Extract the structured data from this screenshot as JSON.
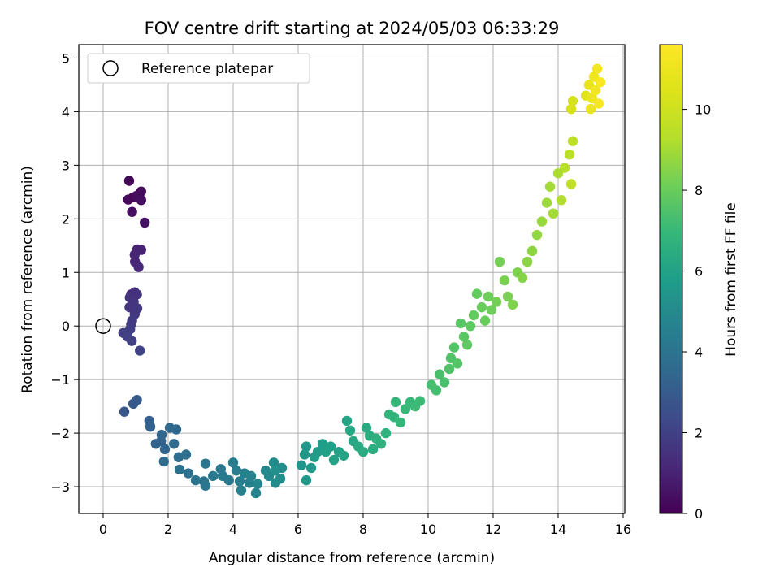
{
  "chart_data": {
    "type": "scatter",
    "title": "FOV centre drift starting at 2024/05/03 06:33:29",
    "xlabel": "Angular distance from reference (arcmin)",
    "ylabel": "Rotation from reference (arcmin)",
    "xlim": [
      -0.75,
      16.05
    ],
    "ylim": [
      -3.5,
      5.25
    ],
    "xticks": [
      "0",
      "2",
      "4",
      "6",
      "8",
      "10",
      "12",
      "14",
      "16"
    ],
    "yticks": [
      "−3",
      "−2",
      "−1",
      "0",
      "1",
      "2",
      "3",
      "4",
      "5"
    ],
    "grid": true,
    "legend": {
      "placement": "top-left",
      "entries": [
        "Reference platepar"
      ]
    },
    "reference_point": {
      "x": 0,
      "y": 0
    },
    "colorbar": {
      "label": "Hours from first FF file",
      "range": [
        0,
        11.6
      ],
      "ticks": [
        "0",
        "2",
        "4",
        "6",
        "8",
        "10"
      ],
      "colormap": "viridis"
    },
    "points": [
      {
        "x": 0.8,
        "y": 2.71,
        "h": 0.1
      },
      {
        "x": 0.77,
        "y": 2.36,
        "h": 0.2
      },
      {
        "x": 0.92,
        "y": 2.4,
        "h": 0.2
      },
      {
        "x": 1.03,
        "y": 2.43,
        "h": 0.3
      },
      {
        "x": 1.17,
        "y": 2.51,
        "h": 0.3
      },
      {
        "x": 1.17,
        "y": 2.35,
        "h": 0.4
      },
      {
        "x": 0.89,
        "y": 2.13,
        "h": 0.4
      },
      {
        "x": 1.28,
        "y": 1.93,
        "h": 0.5
      },
      {
        "x": 1.05,
        "y": 1.43,
        "h": 1.0
      },
      {
        "x": 1.17,
        "y": 1.42,
        "h": 1.0
      },
      {
        "x": 0.97,
        "y": 1.33,
        "h": 1.1
      },
      {
        "x": 0.98,
        "y": 1.2,
        "h": 1.1
      },
      {
        "x": 1.09,
        "y": 1.1,
        "h": 1.2
      },
      {
        "x": 0.86,
        "y": 0.59,
        "h": 1.4
      },
      {
        "x": 0.97,
        "y": 0.63,
        "h": 1.4
      },
      {
        "x": 1.04,
        "y": 0.59,
        "h": 1.5
      },
      {
        "x": 0.82,
        "y": 0.53,
        "h": 1.5
      },
      {
        "x": 0.94,
        "y": 0.45,
        "h": 1.6
      },
      {
        "x": 0.81,
        "y": 0.35,
        "h": 1.6
      },
      {
        "x": 1.05,
        "y": 0.33,
        "h": 1.7
      },
      {
        "x": 0.97,
        "y": 0.22,
        "h": 1.7
      },
      {
        "x": 0.89,
        "y": 0.1,
        "h": 1.8
      },
      {
        "x": 0.86,
        "y": 0.03,
        "h": 1.8
      },
      {
        "x": 0.83,
        "y": -0.06,
        "h": 1.9
      },
      {
        "x": 0.62,
        "y": -0.13,
        "h": 1.9
      },
      {
        "x": 0.75,
        "y": -0.2,
        "h": 2.0
      },
      {
        "x": 0.88,
        "y": -0.28,
        "h": 2.0
      },
      {
        "x": 1.13,
        "y": -0.46,
        "h": 2.1
      },
      {
        "x": 0.65,
        "y": -1.6,
        "h": 2.8
      },
      {
        "x": 0.93,
        "y": -1.45,
        "h": 2.9
      },
      {
        "x": 1.04,
        "y": -1.38,
        "h": 2.9
      },
      {
        "x": 1.42,
        "y": -1.77,
        "h": 3.1
      },
      {
        "x": 1.45,
        "y": -1.88,
        "h": 3.2
      },
      {
        "x": 1.62,
        "y": -2.2,
        "h": 3.3
      },
      {
        "x": 1.78,
        "y": -2.15,
        "h": 3.3
      },
      {
        "x": 1.8,
        "y": -2.03,
        "h": 3.4
      },
      {
        "x": 1.9,
        "y": -2.3,
        "h": 3.4
      },
      {
        "x": 2.05,
        "y": -1.9,
        "h": 3.5
      },
      {
        "x": 2.25,
        "y": -1.93,
        "h": 3.5
      },
      {
        "x": 2.18,
        "y": -2.2,
        "h": 3.6
      },
      {
        "x": 1.87,
        "y": -2.53,
        "h": 3.6
      },
      {
        "x": 2.32,
        "y": -2.45,
        "h": 3.7
      },
      {
        "x": 2.55,
        "y": -2.4,
        "h": 3.8
      },
      {
        "x": 2.35,
        "y": -2.68,
        "h": 3.8
      },
      {
        "x": 2.62,
        "y": -2.75,
        "h": 3.9
      },
      {
        "x": 2.85,
        "y": -2.88,
        "h": 4.0
      },
      {
        "x": 3.1,
        "y": -2.9,
        "h": 4.0
      },
      {
        "x": 3.15,
        "y": -2.98,
        "h": 4.1
      },
      {
        "x": 3.15,
        "y": -2.57,
        "h": 4.1
      },
      {
        "x": 3.38,
        "y": -2.8,
        "h": 4.2
      },
      {
        "x": 3.62,
        "y": -2.67,
        "h": 4.2
      },
      {
        "x": 3.68,
        "y": -2.8,
        "h": 4.3
      },
      {
        "x": 3.87,
        "y": -2.88,
        "h": 4.3
      },
      {
        "x": 4.0,
        "y": -2.55,
        "h": 4.4
      },
      {
        "x": 4.1,
        "y": -2.7,
        "h": 4.4
      },
      {
        "x": 4.2,
        "y": -2.9,
        "h": 4.5
      },
      {
        "x": 4.25,
        "y": -3.07,
        "h": 4.5
      },
      {
        "x": 4.35,
        "y": -2.75,
        "h": 4.6
      },
      {
        "x": 4.5,
        "y": -2.93,
        "h": 4.6
      },
      {
        "x": 4.55,
        "y": -2.8,
        "h": 4.7
      },
      {
        "x": 4.7,
        "y": -3.12,
        "h": 4.7
      },
      {
        "x": 4.75,
        "y": -2.95,
        "h": 4.8
      },
      {
        "x": 5.0,
        "y": -2.7,
        "h": 4.9
      },
      {
        "x": 5.1,
        "y": -2.8,
        "h": 4.9
      },
      {
        "x": 5.25,
        "y": -2.55,
        "h": 5.0
      },
      {
        "x": 5.3,
        "y": -2.93,
        "h": 5.0
      },
      {
        "x": 5.45,
        "y": -2.85,
        "h": 5.1
      },
      {
        "x": 5.5,
        "y": -2.65,
        "h": 5.1
      },
      {
        "x": 5.3,
        "y": -2.7,
        "h": 5.2
      },
      {
        "x": 6.1,
        "y": -2.6,
        "h": 5.4
      },
      {
        "x": 6.2,
        "y": -2.4,
        "h": 5.5
      },
      {
        "x": 6.25,
        "y": -2.25,
        "h": 5.5
      },
      {
        "x": 6.25,
        "y": -2.88,
        "h": 5.6
      },
      {
        "x": 6.4,
        "y": -2.65,
        "h": 5.6
      },
      {
        "x": 6.5,
        "y": -2.45,
        "h": 5.7
      },
      {
        "x": 6.6,
        "y": -2.35,
        "h": 5.7
      },
      {
        "x": 6.75,
        "y": -2.2,
        "h": 5.8
      },
      {
        "x": 6.85,
        "y": -2.35,
        "h": 5.9
      },
      {
        "x": 7.0,
        "y": -2.25,
        "h": 5.9
      },
      {
        "x": 7.1,
        "y": -2.5,
        "h": 6.0
      },
      {
        "x": 7.25,
        "y": -2.35,
        "h": 6.0
      },
      {
        "x": 7.4,
        "y": -2.42,
        "h": 6.1
      },
      {
        "x": 7.5,
        "y": -1.77,
        "h": 6.1
      },
      {
        "x": 7.6,
        "y": -1.95,
        "h": 6.2
      },
      {
        "x": 7.7,
        "y": -2.15,
        "h": 6.2
      },
      {
        "x": 7.85,
        "y": -2.25,
        "h": 6.3
      },
      {
        "x": 8.0,
        "y": -2.35,
        "h": 6.4
      },
      {
        "x": 8.1,
        "y": -1.9,
        "h": 6.4
      },
      {
        "x": 8.2,
        "y": -2.05,
        "h": 6.5
      },
      {
        "x": 8.3,
        "y": -2.3,
        "h": 6.5
      },
      {
        "x": 8.4,
        "y": -2.1,
        "h": 6.6
      },
      {
        "x": 8.55,
        "y": -2.2,
        "h": 6.6
      },
      {
        "x": 8.7,
        "y": -2.0,
        "h": 6.7
      },
      {
        "x": 8.8,
        "y": -1.65,
        "h": 6.8
      },
      {
        "x": 8.95,
        "y": -1.7,
        "h": 6.8
      },
      {
        "x": 9.0,
        "y": -1.42,
        "h": 6.9
      },
      {
        "x": 9.15,
        "y": -1.8,
        "h": 6.9
      },
      {
        "x": 9.3,
        "y": -1.55,
        "h": 7.0
      },
      {
        "x": 9.45,
        "y": -1.42,
        "h": 7.0
      },
      {
        "x": 9.6,
        "y": -1.5,
        "h": 7.1
      },
      {
        "x": 9.75,
        "y": -1.4,
        "h": 7.1
      },
      {
        "x": 10.1,
        "y": -1.1,
        "h": 7.3
      },
      {
        "x": 10.25,
        "y": -1.2,
        "h": 7.3
      },
      {
        "x": 10.35,
        "y": -0.9,
        "h": 7.4
      },
      {
        "x": 10.5,
        "y": -1.05,
        "h": 7.4
      },
      {
        "x": 10.65,
        "y": -0.8,
        "h": 7.5
      },
      {
        "x": 10.7,
        "y": -0.6,
        "h": 7.5
      },
      {
        "x": 10.8,
        "y": -0.4,
        "h": 7.6
      },
      {
        "x": 10.9,
        "y": -0.7,
        "h": 7.6
      },
      {
        "x": 11.0,
        "y": 0.05,
        "h": 7.7
      },
      {
        "x": 11.1,
        "y": -0.2,
        "h": 7.7
      },
      {
        "x": 11.2,
        "y": -0.35,
        "h": 7.8
      },
      {
        "x": 11.3,
        "y": 0.0,
        "h": 7.8
      },
      {
        "x": 11.4,
        "y": 0.2,
        "h": 7.9
      },
      {
        "x": 11.5,
        "y": 0.6,
        "h": 7.9
      },
      {
        "x": 11.65,
        "y": 0.35,
        "h": 8.0
      },
      {
        "x": 11.75,
        "y": 0.1,
        "h": 8.0
      },
      {
        "x": 11.85,
        "y": 0.55,
        "h": 8.1
      },
      {
        "x": 11.95,
        "y": 0.3,
        "h": 8.1
      },
      {
        "x": 12.1,
        "y": 0.45,
        "h": 8.2
      },
      {
        "x": 12.2,
        "y": 1.2,
        "h": 8.2
      },
      {
        "x": 12.35,
        "y": 0.85,
        "h": 8.3
      },
      {
        "x": 12.45,
        "y": 0.55,
        "h": 8.3
      },
      {
        "x": 12.6,
        "y": 0.4,
        "h": 8.4
      },
      {
        "x": 12.75,
        "y": 1.0,
        "h": 8.4
      },
      {
        "x": 12.9,
        "y": 0.9,
        "h": 8.5
      },
      {
        "x": 13.05,
        "y": 1.2,
        "h": 8.6
      },
      {
        "x": 13.2,
        "y": 1.4,
        "h": 8.6
      },
      {
        "x": 13.35,
        "y": 1.7,
        "h": 8.7
      },
      {
        "x": 13.5,
        "y": 1.95,
        "h": 8.8
      },
      {
        "x": 13.65,
        "y": 2.3,
        "h": 8.9
      },
      {
        "x": 13.75,
        "y": 2.6,
        "h": 9.0
      },
      {
        "x": 13.85,
        "y": 2.1,
        "h": 9.0
      },
      {
        "x": 14.0,
        "y": 2.85,
        "h": 9.1
      },
      {
        "x": 14.1,
        "y": 2.35,
        "h": 9.2
      },
      {
        "x": 14.2,
        "y": 2.95,
        "h": 9.3
      },
      {
        "x": 14.35,
        "y": 3.2,
        "h": 9.4
      },
      {
        "x": 14.45,
        "y": 3.45,
        "h": 9.5
      },
      {
        "x": 14.4,
        "y": 2.65,
        "h": 9.6
      },
      {
        "x": 14.45,
        "y": 4.2,
        "h": 10.2
      },
      {
        "x": 14.4,
        "y": 4.05,
        "h": 10.3
      },
      {
        "x": 14.85,
        "y": 4.3,
        "h": 10.6
      },
      {
        "x": 14.95,
        "y": 4.5,
        "h": 10.8
      },
      {
        "x": 15.0,
        "y": 4.05,
        "h": 10.9
      },
      {
        "x": 15.05,
        "y": 4.25,
        "h": 11.0
      },
      {
        "x": 15.1,
        "y": 4.65,
        "h": 11.1
      },
      {
        "x": 15.15,
        "y": 4.4,
        "h": 11.2
      },
      {
        "x": 15.2,
        "y": 4.8,
        "h": 11.3
      },
      {
        "x": 15.25,
        "y": 4.15,
        "h": 11.4
      },
      {
        "x": 15.3,
        "y": 4.55,
        "h": 11.5
      }
    ]
  }
}
